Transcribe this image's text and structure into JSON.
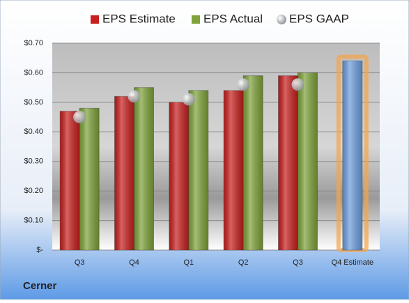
{
  "chart_data": {
    "type": "bar",
    "title": "Cerner",
    "categories": [
      "Q3",
      "Q4",
      "Q1",
      "Q2",
      "Q3",
      "Q4 Estimate"
    ],
    "series": [
      {
        "name": "EPS Estimate",
        "color": "#c8201e",
        "values": [
          0.47,
          0.52,
          0.5,
          0.54,
          0.59,
          0.64
        ]
      },
      {
        "name": "EPS Actual",
        "color": "#7fa33a",
        "values": [
          0.48,
          0.55,
          0.54,
          0.59,
          0.6,
          null
        ]
      },
      {
        "name": "EPS GAAP",
        "color": "#a9adb3",
        "type": "scatter",
        "values": [
          0.45,
          0.52,
          0.51,
          0.56,
          0.56,
          null
        ]
      }
    ],
    "highlight_color": "#6f9ede",
    "ylim": [
      0,
      0.7
    ],
    "yticks": [
      {
        "value": 0,
        "label": "$-"
      },
      {
        "value": 0.1,
        "label": "$0.10"
      },
      {
        "value": 0.2,
        "label": "$0.20"
      },
      {
        "value": 0.3,
        "label": "$0.30"
      },
      {
        "value": 0.4,
        "label": "$0.40"
      },
      {
        "value": 0.5,
        "label": "$0.50"
      },
      {
        "value": 0.6,
        "label": "$0.60"
      },
      {
        "value": 0.7,
        "label": "$0.70"
      }
    ],
    "grid": true,
    "legend": "top"
  }
}
